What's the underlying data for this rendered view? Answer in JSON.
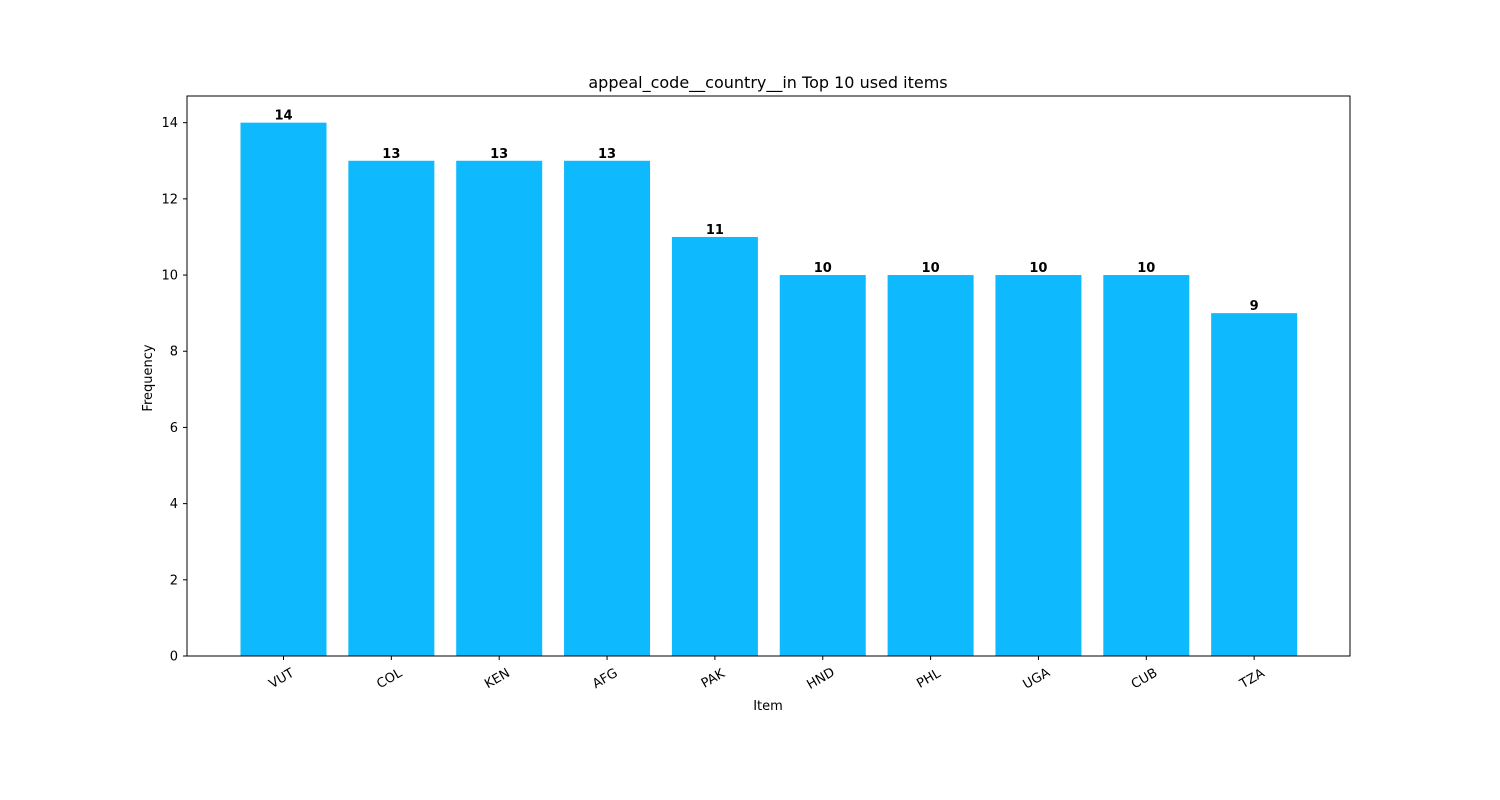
{
  "chart_data": {
    "type": "bar",
    "title": "appeal_code__country__in Top 10 used items",
    "xlabel": "Item",
    "ylabel": "Frequency",
    "categories": [
      "VUT",
      "COL",
      "KEN",
      "AFG",
      "PAK",
      "HND",
      "PHL",
      "UGA",
      "CUB",
      "TZA"
    ],
    "values": [
      14,
      13,
      13,
      13,
      11,
      10,
      10,
      10,
      10,
      9
    ],
    "ylim": [
      0,
      14.7
    ],
    "yticks": [
      0,
      2,
      4,
      6,
      8,
      10,
      12,
      14
    ],
    "bar_color": "#0fb9fd",
    "grid": false,
    "legend": "none"
  }
}
